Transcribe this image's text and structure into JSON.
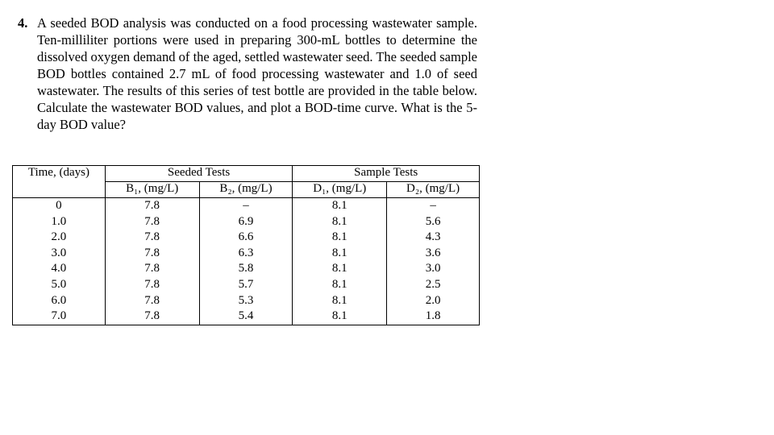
{
  "problem": {
    "number": "4.",
    "text": "A seeded BOD analysis was conducted on a food processing wastewater sample. Ten-milliliter portions were used in preparing 300-mL bottles to determine the dissolved oxygen demand of the aged, settled wastewater seed. The seeded sample BOD bottles contained 2.7 mL of food processing wastewater and 1.0 of seed wastewater. The results of this series of test bottle are provided in the table below. Calculate the wastewater BOD values, and plot a BOD-time curve. What is the 5-day BOD value?"
  },
  "table": {
    "time_header": "Time, (days)",
    "seeded_header": "Seeded Tests",
    "sample_header": "Sample Tests",
    "sub_headers": [
      "B₁, (mg/L)",
      "B₂, (mg/L)",
      "D₁, (mg/L)",
      "D₂, (mg/L)"
    ],
    "rows": [
      [
        "0",
        "7.8",
        "–",
        "8.1",
        "–"
      ],
      [
        "1.0",
        "7.8",
        "6.9",
        "8.1",
        "5.6"
      ],
      [
        "2.0",
        "7.8",
        "6.6",
        "8.1",
        "4.3"
      ],
      [
        "3.0",
        "7.8",
        "6.3",
        "8.1",
        "3.6"
      ],
      [
        "4.0",
        "7.8",
        "5.8",
        "8.1",
        "3.0"
      ],
      [
        "5.0",
        "7.8",
        "5.7",
        "8.1",
        "2.5"
      ],
      [
        "6.0",
        "7.8",
        "5.3",
        "8.1",
        "2.0"
      ],
      [
        "7.0",
        "7.8",
        "5.4",
        "8.1",
        "1.8"
      ]
    ]
  }
}
